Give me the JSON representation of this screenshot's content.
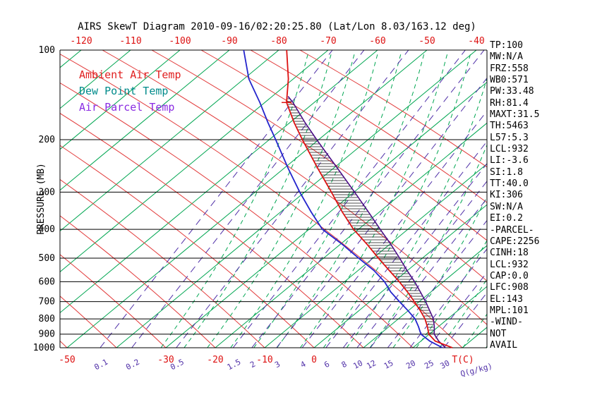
{
  "title": "AIRS SkewT Diagram 2010-09-16/02:20:25.80 (Lat/Lon 8.03/163.12 deg)",
  "legend": {
    "ambient": {
      "label": "Ambient Air Temp",
      "color": "#e02020"
    },
    "dew": {
      "label": "Dew Point Temp",
      "color": "#008b8b"
    },
    "parcel": {
      "label": "Air Parcel Temp",
      "color": "#8a2be2"
    }
  },
  "axes": {
    "pressure_label": "PRESSURE (MB)",
    "pressure_ticks": [
      100,
      200,
      300,
      400,
      500,
      600,
      700,
      800,
      900,
      1000
    ],
    "top_temp_ticks": [
      -120,
      -110,
      -100,
      -90,
      -80,
      -70,
      -60,
      -50,
      -40
    ],
    "bottom_temp_ticks": [
      -50,
      -30,
      -20,
      -10,
      0
    ],
    "temp_unit_label": "T(C)",
    "mixing_unit_label": "Q(g/kg)"
  },
  "stats": [
    "TP:100",
    "MW:N/A",
    "FRZ:558",
    "WB0:571",
    "PW:33.48",
    "RH:81.4",
    "MAXT:31.5",
    "TH:5463",
    "L57:5.3",
    "LCL:932",
    "LI:-3.6",
    "SI:1.8",
    "TT:40.0",
    "KI:306",
    "SW:N/A",
    "EI:0.2",
    "-PARCEL-",
    "CAPE:2256",
    "CINH:18",
    "LCL:932",
    "CAP:0.0",
    "LFC:908",
    "EL:143",
    "MPL:101",
    "-WIND-",
    "NOT",
    "AVAIL"
  ],
  "chart_data": {
    "type": "line",
    "title": "AIRS SkewT Diagram 2010-09-16/02:20:25.80",
    "x_axis": {
      "label": "T(C)",
      "surface_range": [
        -50,
        35
      ],
      "skewed": true
    },
    "y_axis": {
      "label": "PRESSURE (MB)",
      "range": [
        100,
        1000
      ],
      "scale": "log"
    },
    "colors": {
      "isotherm": "#00a651",
      "dry_adiabat": "#e23b3b",
      "mixing": "#5030a8",
      "ambient": "#dd1111",
      "dew": "#2424cc",
      "parcel": "#4b0d86",
      "hatch": "#151515",
      "top_labels": "#dd1111"
    },
    "grid": {
      "isotherms_c": [
        -120,
        -110,
        -100,
        -90,
        -80,
        -70,
        -60,
        -50,
        -40,
        -30,
        -20,
        -10,
        0,
        10,
        20,
        30
      ],
      "dry_adiabats_start_c": [
        -50,
        -40,
        -30,
        -20,
        -10,
        0,
        10,
        20,
        30,
        40,
        50,
        60,
        70,
        80
      ],
      "moist_adiabats_start_c": [
        -31,
        -26.3,
        -21.6,
        -16.9,
        -12.2,
        -7.5,
        -2.8,
        1.9,
        6.6,
        11.3,
        16,
        20.7,
        25.4,
        30.1,
        34.8
      ],
      "mixing_lines": [
        {
          "q": 0.1,
          "t1000": -43.3
        },
        {
          "q": 0.2,
          "t1000": -36.9
        },
        {
          "q": 0.5,
          "t1000": -27.9
        },
        {
          "q": 1.5,
          "t1000": -16.4
        },
        {
          "q": 2,
          "t1000": -12.6
        },
        {
          "q": 3,
          "t1000": -7.6
        },
        {
          "q": 4,
          "t1000": -2.4
        },
        {
          "q": 6,
          "t1000": 2.4
        },
        {
          "q": 8,
          "t1000": 5.9
        },
        {
          "q": 10,
          "t1000": 8.7
        },
        {
          "q": 12,
          "t1000": 11.4
        },
        {
          "q": 15,
          "t1000": 14.9
        },
        {
          "q": 20,
          "t1000": 19.4
        },
        {
          "q": 25,
          "t1000": 23.1
        },
        {
          "q": 30,
          "t1000": 26.3
        }
      ]
    },
    "series": [
      {
        "name": "Ambient Air Temp",
        "color": "#dd1111",
        "points": [
          [
            100,
            -78.4
          ],
          [
            125,
            -71.0
          ],
          [
            150,
            -65.6
          ],
          [
            175,
            -59.2
          ],
          [
            200,
            -53.3
          ],
          [
            250,
            -43.1
          ],
          [
            300,
            -34.6
          ],
          [
            350,
            -27.5
          ],
          [
            400,
            -21.0
          ],
          [
            450,
            -14.5
          ],
          [
            500,
            -8.9
          ],
          [
            550,
            -3.7
          ],
          [
            600,
            1.1
          ],
          [
            650,
            5.3
          ],
          [
            700,
            9.0
          ],
          [
            750,
            12.4
          ],
          [
            800,
            15.4
          ],
          [
            850,
            17.8
          ],
          [
            900,
            19.9
          ],
          [
            950,
            22.9
          ],
          [
            1000,
            28.0
          ]
        ]
      },
      {
        "name": "Dew Point Temp",
        "color": "#2424cc",
        "points": [
          [
            100,
            -87.1
          ],
          [
            125,
            -79.0
          ],
          [
            150,
            -71.0
          ],
          [
            175,
            -64.5
          ],
          [
            200,
            -58.7
          ],
          [
            250,
            -49.1
          ],
          [
            300,
            -41.0
          ],
          [
            350,
            -33.8
          ],
          [
            400,
            -27.3
          ],
          [
            450,
            -19.5
          ],
          [
            500,
            -12.9
          ],
          [
            550,
            -6.8
          ],
          [
            600,
            -1.9
          ],
          [
            650,
            1.9
          ],
          [
            700,
            6.0
          ],
          [
            750,
            9.9
          ],
          [
            800,
            13.4
          ],
          [
            850,
            16.0
          ],
          [
            900,
            18.3
          ],
          [
            950,
            21.8
          ],
          [
            1000,
            26.0
          ]
        ]
      },
      {
        "name": "Air Parcel Temp",
        "color": "#4b0d86",
        "points": [
          [
            143,
            -66.8
          ],
          [
            150,
            -64.3
          ],
          [
            175,
            -57.0
          ],
          [
            200,
            -50.4
          ],
          [
            250,
            -39.1
          ],
          [
            300,
            -29.9
          ],
          [
            350,
            -22.2
          ],
          [
            400,
            -15.6
          ],
          [
            450,
            -9.7
          ],
          [
            500,
            -4.6
          ],
          [
            550,
            -0.1
          ],
          [
            600,
            4.2
          ],
          [
            650,
            7.9
          ],
          [
            700,
            11.3
          ],
          [
            750,
            14.3
          ],
          [
            800,
            17.1
          ],
          [
            850,
            19.2
          ],
          [
            900,
            21.0
          ],
          [
            950,
            23.6
          ],
          [
            1000,
            26.6
          ]
        ]
      }
    ],
    "cape_hatch": {
      "top_p": 145,
      "bottom_p": 905
    },
    "markers": {
      "tick_p": 150
    }
  }
}
